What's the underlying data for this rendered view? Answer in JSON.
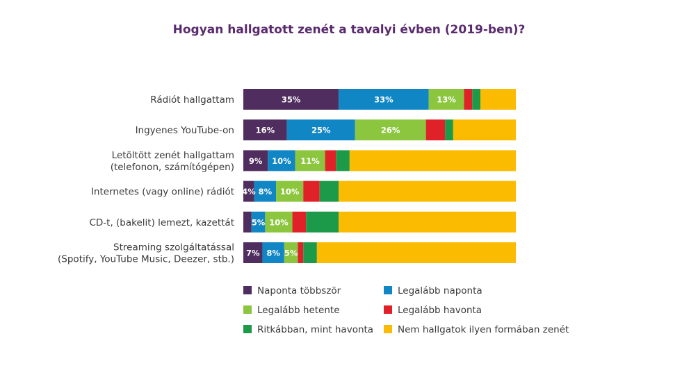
{
  "chart_data": {
    "type": "bar",
    "orientation": "horizontal",
    "stacked": true,
    "title": "Hogyan hallgatott zenét a tavalyi évben (2019-ben)?",
    "title_color": "#5a2a6e",
    "categories": [
      [
        "Rádiót hallgattam"
      ],
      [
        "Ingyenes YouTube-on"
      ],
      [
        "Letöltött zenét hallgattam",
        "(telefonon, számítógépen)"
      ],
      [
        "Internetes (vagy online) rádiót"
      ],
      [
        "CD-t, (bakelit) lemezt, kazettát"
      ],
      [
        "Streaming szolgáltatással",
        "(Spotify, YouTube Music, Deezer, stb.)"
      ]
    ],
    "xlim": [
      0,
      100
    ],
    "grid": false,
    "legend_position": "bottom",
    "series": [
      {
        "name": "Naponta többször",
        "color": "#4f2d5e",
        "values": [
          35,
          16,
          9,
          4,
          3,
          7
        ],
        "labels": [
          "35%",
          "16%",
          "9%",
          "4%",
          "",
          "7%"
        ]
      },
      {
        "name": "Legalább naponta",
        "color": "#1186c4",
        "values": [
          33,
          25,
          10,
          8,
          5,
          8
        ],
        "labels": [
          "33%",
          "25%",
          "10%",
          "8%",
          "5%",
          "8%"
        ]
      },
      {
        "name": "Legalább hetente",
        "color": "#8cc63f",
        "values": [
          13,
          26,
          11,
          10,
          10,
          5
        ],
        "labels": [
          "13%",
          "26%",
          "11%",
          "10%",
          "10%",
          "5%"
        ]
      },
      {
        "name": "Legalább havonta",
        "color": "#e02128",
        "values": [
          3,
          7,
          4,
          6,
          5,
          2
        ],
        "labels": [
          "",
          "",
          "",
          "",
          "",
          ""
        ]
      },
      {
        "name": "Ritkábban, mint havonta",
        "color": "#1d9a49",
        "values": [
          3,
          3,
          5,
          7,
          12,
          5
        ],
        "labels": [
          "",
          "",
          "",
          "",
          "",
          ""
        ]
      },
      {
        "name": "Nem hallgatok ilyen formában zenét",
        "color": "#fbbb00",
        "values": [
          13,
          23,
          61,
          65,
          65,
          73
        ],
        "labels": [
          "",
          "",
          "",
          "",
          "",
          ""
        ]
      }
    ]
  }
}
